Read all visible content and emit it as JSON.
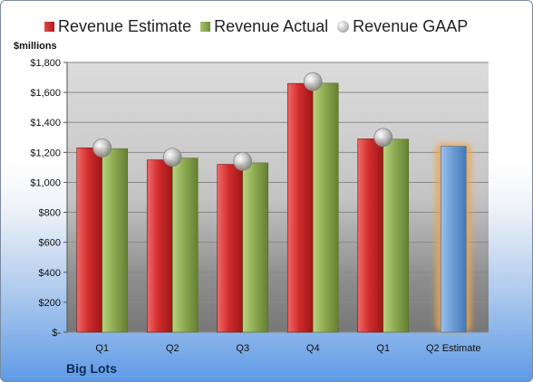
{
  "chart_data": {
    "type": "bar",
    "legend": [
      "Revenue Estimate",
      "Revenue Actual",
      "Revenue GAAP"
    ],
    "ylabel": "$millions",
    "ylim": [
      0,
      1800
    ],
    "y_ticks": [
      {
        "value": 0,
        "label": "$-"
      },
      {
        "value": 200,
        "label": "$200"
      },
      {
        "value": 400,
        "label": "$400"
      },
      {
        "value": 600,
        "label": "$600"
      },
      {
        "value": 800,
        "label": "$800"
      },
      {
        "value": 1000,
        "label": "$1,000"
      },
      {
        "value": 1200,
        "label": "$1,200"
      },
      {
        "value": 1400,
        "label": "$1,400"
      },
      {
        "value": 1600,
        "label": "$1,600"
      },
      {
        "value": 1800,
        "label": "$1,800"
      }
    ],
    "categories": [
      "Q1",
      "Q2",
      "Q3",
      "Q4",
      "Q1",
      "Q2 Estimate"
    ],
    "series": [
      {
        "name": "Revenue Estimate",
        "values": [
          1230,
          1150,
          1120,
          1660,
          1290,
          1240
        ]
      },
      {
        "name": "Revenue Actual",
        "values": [
          1225,
          1162,
          1130,
          1662,
          1288,
          null
        ]
      },
      {
        "name": "Revenue GAAP",
        "values": [
          1230,
          1168,
          1140,
          1672,
          1300,
          null
        ]
      }
    ],
    "grid": true,
    "legend_position": "top",
    "colors": {
      "estimate": "#c62828",
      "actual": "#8aa84f",
      "gaap": "#bdbdbd",
      "future_estimate": "#6f9fd8",
      "highlight": "#f2a64a"
    },
    "footer": "Big Lots"
  }
}
